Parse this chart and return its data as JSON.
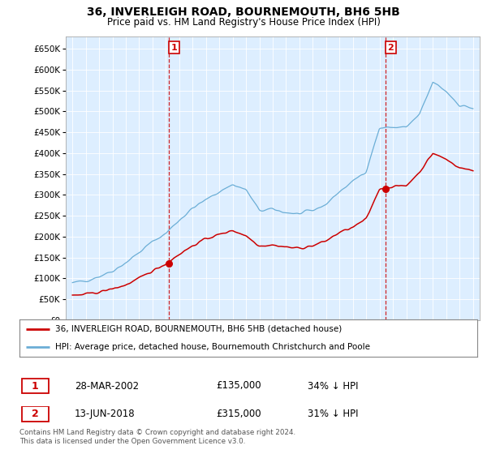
{
  "title": "36, INVERLEIGH ROAD, BOURNEMOUTH, BH6 5HB",
  "subtitle": "Price paid vs. HM Land Registry's House Price Index (HPI)",
  "legend_line1": "36, INVERLEIGH ROAD, BOURNEMOUTH, BH6 5HB (detached house)",
  "legend_line2": "HPI: Average price, detached house, Bournemouth Christchurch and Poole",
  "sale1_date": "28-MAR-2002",
  "sale1_price": "£135,000",
  "sale1_hpi": "34% ↓ HPI",
  "sale2_date": "13-JUN-2018",
  "sale2_price": "£315,000",
  "sale2_hpi": "31% ↓ HPI",
  "footer": "Contains HM Land Registry data © Crown copyright and database right 2024.\nThis data is licensed under the Open Government Licence v3.0.",
  "hpi_color": "#6baed6",
  "price_color": "#cc0000",
  "marker_color": "#cc0000",
  "sale1_x": 2002.22,
  "sale1_y": 135000,
  "sale2_x": 2018.45,
  "sale2_y": 315000,
  "ylim": [
    0,
    680000
  ],
  "xlim": [
    1994.5,
    2025.5
  ],
  "plot_bg": "#ddeeff",
  "background_color": "#ffffff",
  "grid_color": "#ffffff"
}
